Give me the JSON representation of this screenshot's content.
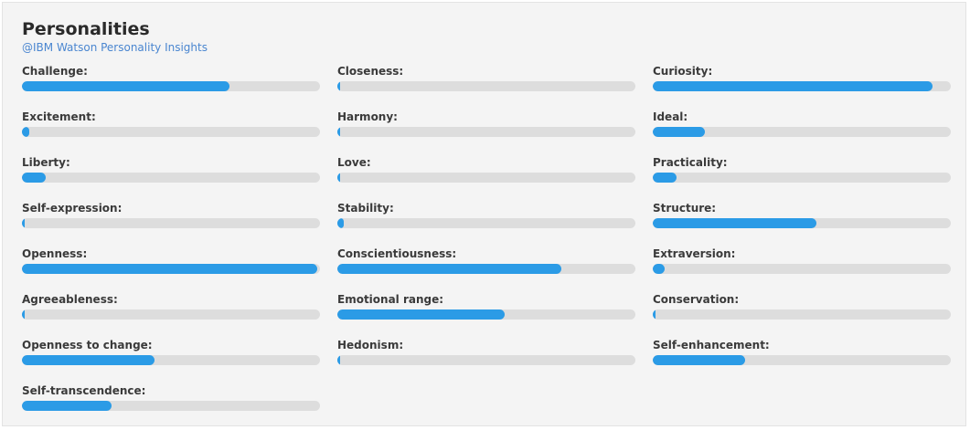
{
  "header": {
    "title": "Personalities",
    "subtitle": "@IBM Watson Personality Insights"
  },
  "colors": {
    "bar": "#2b9be6",
    "track": "#dddddd",
    "subtitle": "#4a86d0"
  },
  "traits": [
    {
      "label": "Challenge:",
      "value": 0.695
    },
    {
      "label": "Closeness:",
      "value": 0.005
    },
    {
      "label": "Curiosity:",
      "value": 0.94
    },
    {
      "label": "Excitement:",
      "value": 0.025
    },
    {
      "label": "Harmony:",
      "value": 0.01
    },
    {
      "label": "Ideal:",
      "value": 0.175
    },
    {
      "label": "Liberty:",
      "value": 0.08
    },
    {
      "label": "Love:",
      "value": 0.005
    },
    {
      "label": "Practicality:",
      "value": 0.08
    },
    {
      "label": "Self-expression:",
      "value": 0.005
    },
    {
      "label": "Stability:",
      "value": 0.02
    },
    {
      "label": "Structure:",
      "value": 0.55
    },
    {
      "label": "Openness:",
      "value": 0.99
    },
    {
      "label": "Conscientiousness:",
      "value": 0.75
    },
    {
      "label": "Extraversion:",
      "value": 0.04
    },
    {
      "label": "Agreeableness:",
      "value": 0.01
    },
    {
      "label": "Emotional range:",
      "value": 0.56
    },
    {
      "label": "Conservation:",
      "value": 0.004
    },
    {
      "label": "Openness to change:",
      "value": 0.445
    },
    {
      "label": "Hedonism:",
      "value": 0.004
    },
    {
      "label": "Self-enhancement:",
      "value": 0.31
    },
    {
      "label": "Self-transcendence:",
      "value": 0.3
    }
  ]
}
